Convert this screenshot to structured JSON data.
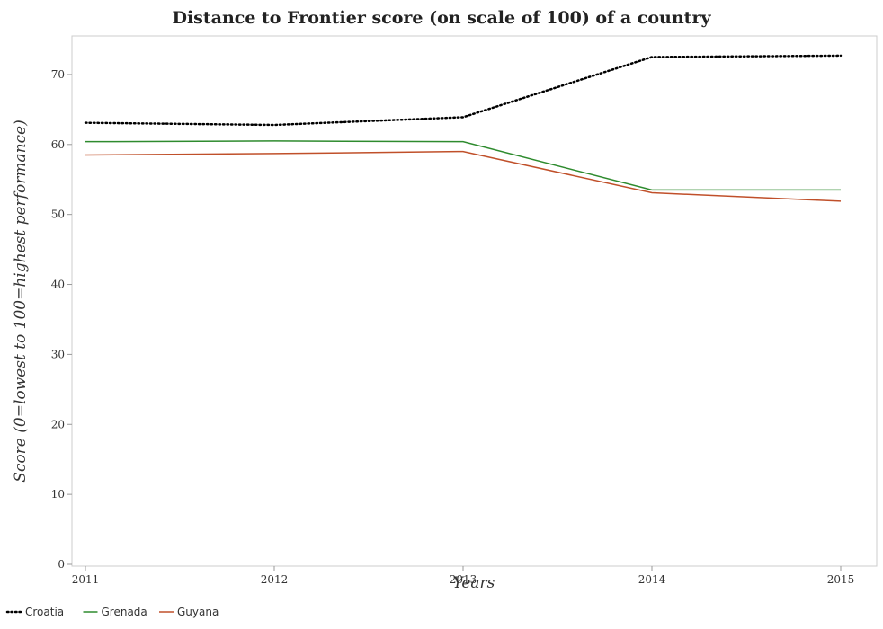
{
  "chart_data": {
    "type": "line",
    "title": "Distance to Frontier score (on scale of 100) of a country",
    "xlabel": "Years",
    "ylabel": "Score (0=lowest to 100=highest performance)",
    "categories": [
      "2011",
      "2012",
      "2013",
      "2014",
      "2015"
    ],
    "ylim": [
      0,
      75
    ],
    "yticks": [
      "0",
      "10",
      "20",
      "30",
      "40",
      "50",
      "60",
      "70"
    ],
    "grid": false,
    "legend_position": "bottom-left",
    "series": [
      {
        "name": "Croatia",
        "color": "#000000",
        "style": "dotted",
        "values": [
          63.1,
          62.8,
          63.9,
          72.5,
          72.7
        ]
      },
      {
        "name": "Grenada",
        "color": "#2e8b2e",
        "style": "solid",
        "values": [
          60.4,
          60.5,
          60.4,
          53.5,
          53.5
        ]
      },
      {
        "name": "Guyana",
        "color": "#c0502a",
        "style": "solid",
        "values": [
          58.5,
          58.7,
          59.0,
          53.1,
          51.9
        ]
      }
    ]
  }
}
